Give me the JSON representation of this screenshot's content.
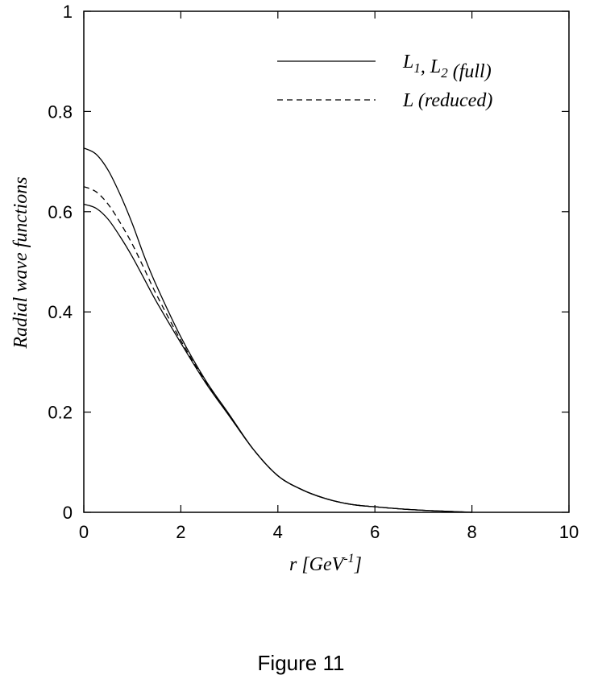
{
  "chart_data": {
    "type": "line",
    "xlabel": {
      "main": "r [GeV",
      "sup": "-1",
      "end": "]"
    },
    "ylabel": "Radial wave functions",
    "xlim": [
      0,
      10
    ],
    "ylim": [
      0,
      1
    ],
    "xticks": [
      0,
      2,
      4,
      6,
      8,
      10
    ],
    "yticks": [
      0,
      0.2,
      0.4,
      0.6,
      0.8,
      1
    ],
    "xtick_labels": [
      "0",
      "2",
      "4",
      "6",
      "8",
      "10"
    ],
    "ytick_labels": [
      "0",
      "0.2",
      "0.4",
      "0.6",
      "0.8",
      "1"
    ],
    "grid": false,
    "legend_position": "top-right",
    "legend": [
      {
        "style": "solid",
        "parts": [
          {
            "t": "L",
            "sub": "1"
          },
          {
            "t": ", "
          },
          {
            "t": "L",
            "sub": "2"
          },
          {
            "t": " (full)"
          }
        ]
      },
      {
        "style": "dashed",
        "parts": [
          {
            "t": "L (reduced)"
          }
        ]
      }
    ],
    "series": [
      {
        "style": "solid",
        "x": [
          0,
          0.25,
          0.5,
          0.75,
          1.0,
          1.25,
          1.5,
          2.0,
          2.5,
          3.0,
          3.5,
          4.0,
          4.5,
          5.0,
          5.5,
          6.0,
          6.5,
          7.0,
          7.5,
          8.0
        ],
        "y": [
          0.727,
          0.715,
          0.683,
          0.634,
          0.576,
          0.51,
          0.452,
          0.35,
          0.265,
          0.195,
          0.125,
          0.073,
          0.045,
          0.027,
          0.016,
          0.011,
          0.007,
          0.004,
          0.002,
          0.0
        ]
      },
      {
        "style": "solid",
        "x": [
          0,
          0.25,
          0.5,
          0.75,
          1.0,
          1.25,
          1.5,
          2.0,
          2.5,
          3.0,
          3.5,
          4.0,
          4.5,
          5.0,
          5.5,
          6.0,
          6.5,
          7.0,
          7.5,
          8.0
        ],
        "y": [
          0.615,
          0.607,
          0.585,
          0.55,
          0.51,
          0.465,
          0.42,
          0.338,
          0.26,
          0.192,
          0.125,
          0.073,
          0.045,
          0.027,
          0.016,
          0.011,
          0.007,
          0.004,
          0.002,
          0.0
        ]
      },
      {
        "style": "dashed",
        "x": [
          0,
          0.25,
          0.5,
          0.75,
          1.0,
          1.25,
          1.5,
          2.0,
          2.5,
          3.0,
          3.5,
          4.0,
          4.5,
          5.0,
          5.5,
          6.0,
          6.5,
          7.0,
          7.5,
          8.0
        ],
        "y": [
          0.65,
          0.64,
          0.615,
          0.578,
          0.535,
          0.485,
          0.434,
          0.343,
          0.262,
          0.193,
          0.125,
          0.073,
          0.045,
          0.027,
          0.016,
          0.011,
          0.007,
          0.004,
          0.002,
          0.0
        ]
      }
    ]
  },
  "caption": "Figure 11"
}
